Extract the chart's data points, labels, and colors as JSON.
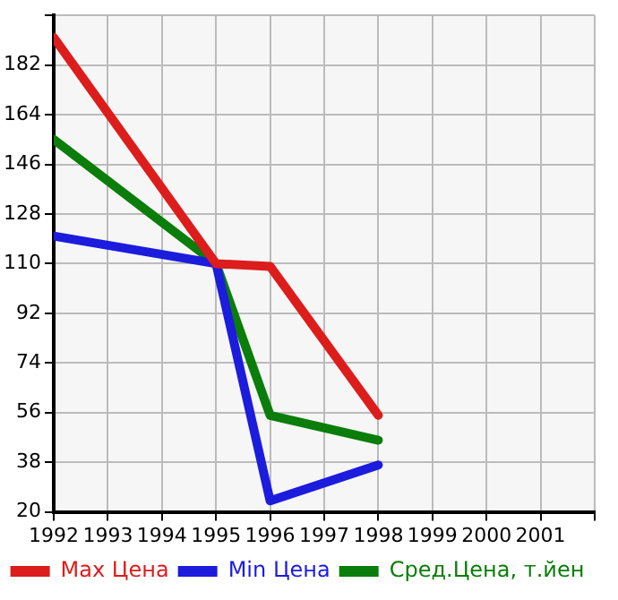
{
  "chart_data": {
    "type": "line",
    "x": [
      1992,
      1995,
      1996,
      1998
    ],
    "series": [
      {
        "name": "Max Цена",
        "color": "#dd1c1c",
        "values": [
          192,
          110,
          109,
          55
        ]
      },
      {
        "name": "Min Цена",
        "color": "#1c1cdd",
        "values": [
          120,
          110,
          24,
          37
        ]
      },
      {
        "name": "Сред.Цена, т.йен",
        "color": "#0a7d0a",
        "values": [
          155,
          110,
          55,
          46
        ]
      }
    ],
    "xlim": [
      1992,
      2002
    ],
    "xticks": [
      1992,
      1993,
      1994,
      1995,
      1996,
      1997,
      1998,
      1999,
      2000,
      2001,
      {
        "value": 2002,
        "label": null
      }
    ],
    "ylim": [
      20,
      200
    ],
    "yticks": [
      20,
      38,
      56,
      74,
      92,
      110,
      128,
      146,
      164,
      182,
      {
        "value": 200,
        "label": null
      }
    ],
    "grid": true,
    "legend": "bottom",
    "marker": "none",
    "line_style": "solid"
  }
}
